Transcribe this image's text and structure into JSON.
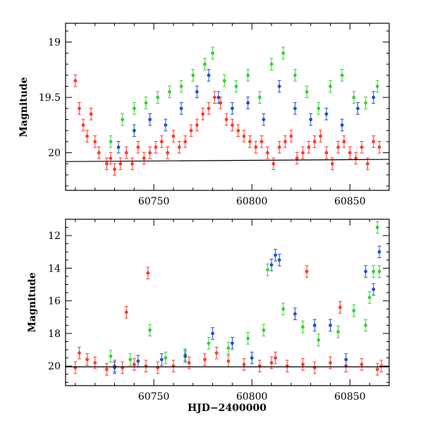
{
  "chart_data": [
    {
      "type": "scatter",
      "panel": "top",
      "ylabel": "Magnitude",
      "xlabel": "",
      "xlim": [
        60705,
        60870
      ],
      "ylim": [
        20.34,
        18.83
      ],
      "y_inverted": true,
      "x_ticks": [
        60750,
        60800,
        60850
      ],
      "y_ticks": [
        19,
        19.5,
        20
      ],
      "error_bars": true,
      "fit_line": {
        "x": [
          60705,
          60870
        ],
        "y": [
          20.08,
          20.06
        ],
        "color": "#000000"
      },
      "series": [
        {
          "color": "#ff3a2c",
          "x": [
            60710,
            60712,
            60714,
            60716,
            60718,
            60720,
            60722,
            60726,
            60728,
            60730,
            60733,
            60736,
            60739,
            60742,
            60745,
            60748,
            60751,
            60754,
            60757,
            60760,
            60763,
            60766,
            60769,
            60772,
            60775,
            60778,
            60781,
            60784,
            60787,
            60790,
            60793,
            60796,
            60799,
            60802,
            60805,
            60808,
            60811,
            60814,
            60817,
            60820,
            60823,
            60826,
            60829,
            60832,
            60835,
            60838,
            60841,
            60844,
            60847,
            60850,
            60853,
            60856,
            60859,
            60862,
            60865
          ],
          "y": [
            19.35,
            19.6,
            19.75,
            19.85,
            19.65,
            19.9,
            20.0,
            20.1,
            20.05,
            20.15,
            20.1,
            20.0,
            20.1,
            19.95,
            20.05,
            20.0,
            19.95,
            19.9,
            20.0,
            19.85,
            19.95,
            19.9,
            19.8,
            19.75,
            19.65,
            19.6,
            19.5,
            19.55,
            19.7,
            19.75,
            19.8,
            19.85,
            19.9,
            19.95,
            19.9,
            20.0,
            20.1,
            19.95,
            19.9,
            19.85,
            20.05,
            20.0,
            19.95,
            19.9,
            19.85,
            20.0,
            20.1,
            19.95,
            19.9,
            20.0,
            20.05,
            19.95,
            20.1,
            19.9,
            19.95
          ]
        },
        {
          "color": "#34d332",
          "x": [
            60728,
            60734,
            60740,
            60746,
            60752,
            60758,
            60764,
            60770,
            60776,
            60780,
            60786,
            60792,
            60798,
            60804,
            60810,
            60816,
            60822,
            60828,
            60834,
            60840,
            60846,
            60852,
            60858,
            60864
          ],
          "y": [
            19.9,
            19.7,
            19.6,
            19.55,
            19.5,
            19.45,
            19.4,
            19.3,
            19.2,
            19.1,
            19.35,
            19.4,
            19.3,
            19.5,
            19.2,
            19.1,
            19.3,
            19.45,
            19.6,
            19.4,
            19.3,
            19.5,
            19.55,
            19.4
          ]
        },
        {
          "color": "#1f4fd6",
          "x": [
            60732,
            60740,
            60748,
            60756,
            60764,
            60772,
            60778,
            60783,
            60790,
            60798,
            60806,
            60814,
            60822,
            60830,
            60838,
            60846,
            60854,
            60862
          ],
          "y": [
            19.95,
            19.8,
            19.7,
            19.75,
            19.6,
            19.45,
            19.3,
            19.5,
            19.6,
            19.55,
            19.7,
            19.4,
            19.6,
            19.7,
            19.65,
            19.75,
            19.6,
            19.5
          ]
        }
      ]
    },
    {
      "type": "scatter",
      "panel": "bottom",
      "ylabel": "Magnitude",
      "xlabel": "HJD−2400000",
      "xlim": [
        60705,
        60870
      ],
      "ylim": [
        21.2,
        11.0
      ],
      "y_inverted": true,
      "x_ticks": [
        60750,
        60800,
        60850
      ],
      "y_ticks": [
        12,
        14,
        16,
        18,
        20
      ],
      "error_bars": true,
      "fit_line": {
        "x": [
          60705,
          60870
        ],
        "y": [
          20.05,
          20.05
        ],
        "color": "#000000"
      },
      "series": [
        {
          "color": "#ff3a2c",
          "x": [
            60710,
            60712,
            60716,
            60720,
            60726,
            60730,
            60734,
            60740,
            60746,
            60752,
            60760,
            60768,
            60776,
            60782,
            60788,
            60796,
            60804,
            60810,
            60812,
            60818,
            60826,
            60832,
            60840,
            60848,
            60856,
            60864,
            60866,
            60747,
            60736,
            60828,
            60845
          ],
          "y": [
            20.1,
            19.2,
            19.6,
            19.8,
            20.2,
            20.0,
            20.1,
            19.9,
            20.0,
            20.1,
            20.0,
            19.8,
            19.6,
            19.2,
            19.7,
            19.9,
            20.0,
            19.8,
            19.5,
            20.0,
            19.9,
            20.1,
            19.8,
            20.0,
            19.9,
            20.2,
            20.0,
            14.3,
            16.7,
            14.2,
            16.4
          ]
        },
        {
          "color": "#34d332",
          "x": [
            60728,
            60738,
            60748,
            60756,
            60766,
            60778,
            60788,
            60798,
            60806,
            60808,
            60816,
            60826,
            60834,
            60844,
            60852,
            60858,
            60860,
            60862,
            60864,
            60865
          ],
          "y": [
            19.4,
            19.6,
            17.8,
            19.5,
            19.3,
            18.6,
            18.9,
            18.3,
            17.8,
            14.1,
            16.5,
            17.6,
            18.4,
            17.9,
            16.6,
            17.5,
            15.8,
            14.2,
            11.5,
            14.2
          ]
        },
        {
          "color": "#1f4fd6",
          "x": [
            60730,
            60742,
            60754,
            60766,
            60780,
            60790,
            60800,
            60810,
            60812,
            60814,
            60822,
            60832,
            60840,
            60848,
            60858,
            60862,
            60865
          ],
          "y": [
            20.1,
            19.7,
            19.6,
            19.4,
            18.0,
            18.6,
            19.5,
            13.8,
            13.2,
            13.5,
            16.8,
            17.5,
            17.5,
            19.6,
            14.2,
            15.3,
            13.0
          ]
        }
      ]
    }
  ]
}
